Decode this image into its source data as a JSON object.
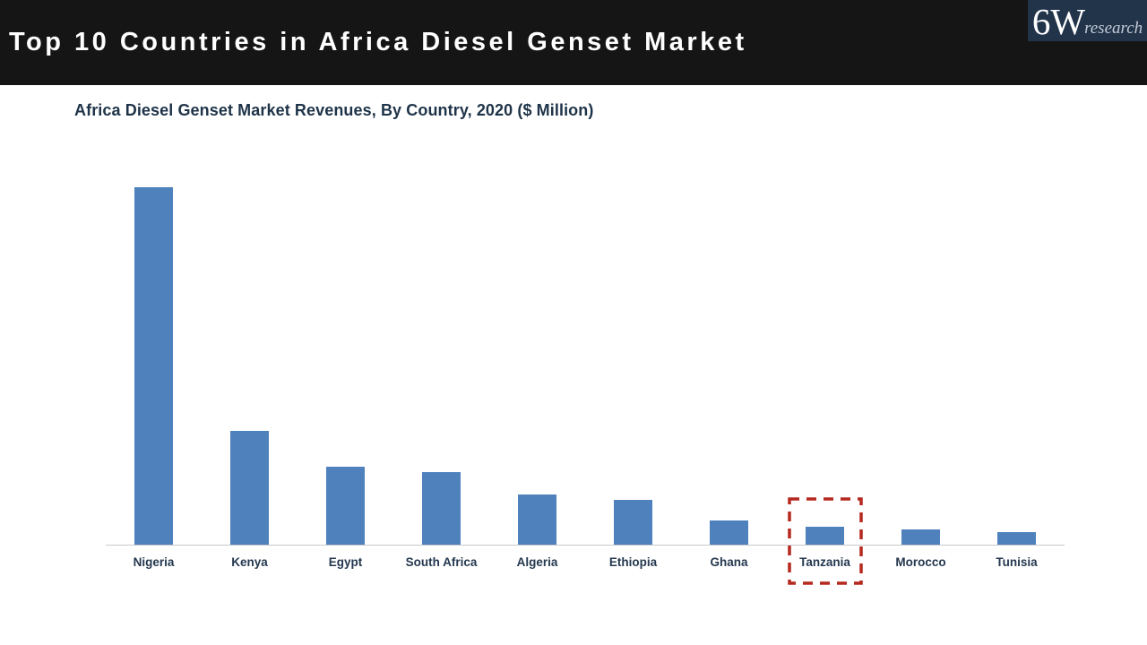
{
  "header": {
    "title": "Top 10 Countries in Africa Diesel Genset Market",
    "bg_color": "#151515",
    "text_color": "#ffffff"
  },
  "logo": {
    "brand_main": "6W",
    "brand_sub": "research",
    "bg_color": "#22344a"
  },
  "chart_data": {
    "type": "bar",
    "title": "Africa Diesel Genset Market Revenues, By Country, 2020 ($ Million)",
    "categories": [
      "Nigeria",
      "Kenya",
      "Egypt",
      "South Africa",
      "Algeria",
      "Ethiopia",
      "Ghana",
      "Tanzania",
      "Morocco",
      "Tunisia"
    ],
    "values": [
      400,
      127,
      87,
      81,
      56,
      50,
      27,
      20,
      17,
      14
    ],
    "values_note": "No numeric y-axis shown in image; values estimated from relative bar heights ($ Million implied)",
    "xlabel": "",
    "ylabel": "",
    "ylim": [
      0,
      440
    ],
    "grid": false,
    "legend": false,
    "bar_color": "#4f81bd",
    "axis_line_color": "#c8c8c8",
    "label_color": "#24384f",
    "highlight": {
      "category": "Tanzania",
      "style": "red-dashed-box",
      "color": "#b5291f"
    }
  }
}
